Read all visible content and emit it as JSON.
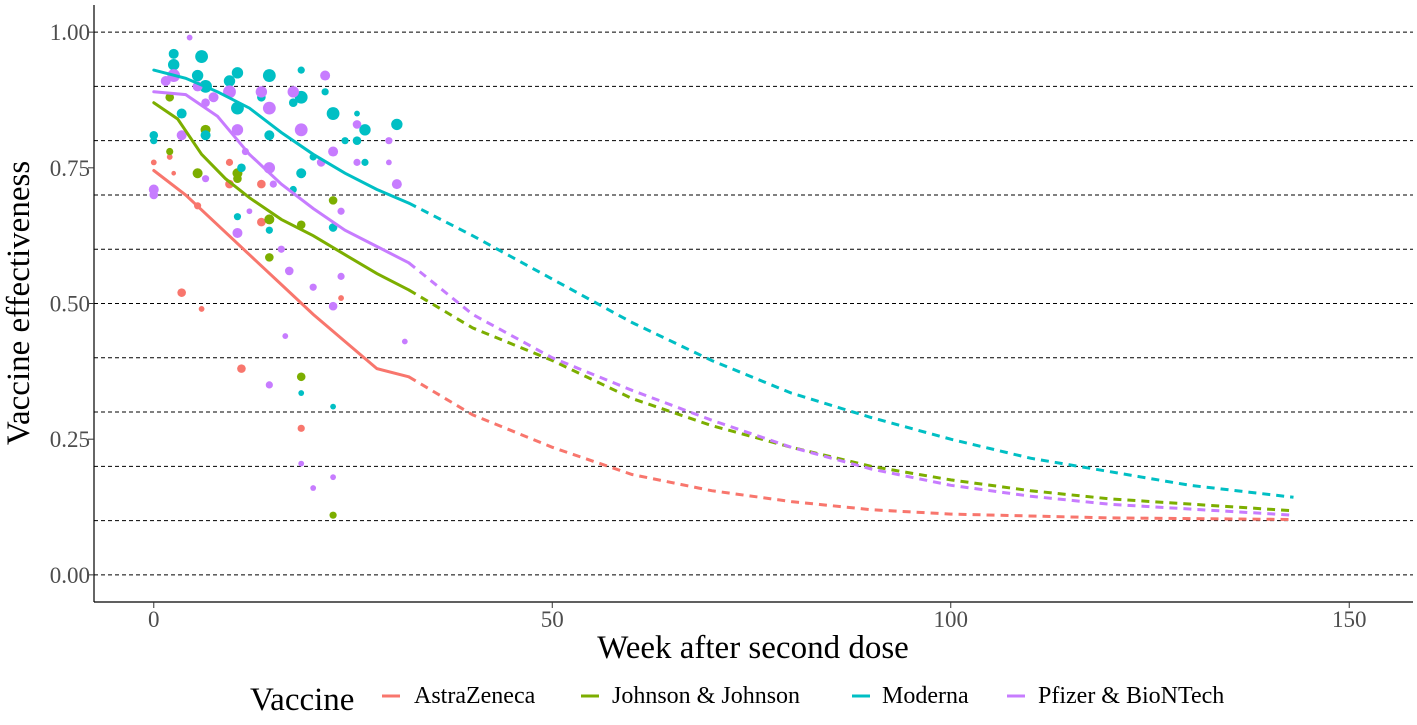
{
  "chart_data": {
    "type": "scatter",
    "xlabel": "Week after second dose",
    "ylabel": "Vaccine effectiveness",
    "xlim": [
      -7.5,
      158
    ],
    "ylim": [
      -0.05,
      1.05
    ],
    "x_ticks": [
      0,
      50,
      100,
      150
    ],
    "x_tick_labels": [
      "0",
      "50",
      "100",
      "150"
    ],
    "y_ticks": [
      0,
      0.25,
      0.5,
      0.75,
      1.0
    ],
    "y_tick_labels": [
      "0.00",
      "0.25",
      "0.50",
      "0.75",
      "1.00"
    ],
    "gridlines_y": [
      0,
      0.1,
      0.2,
      0.3,
      0.4,
      0.5,
      0.6,
      0.7,
      0.8,
      0.9,
      1.0
    ],
    "grid": "horizontal dashed",
    "legend": {
      "title": "Vaccine",
      "position": "bottom",
      "entries": [
        "AstraZeneca",
        "Johnson & Johnson",
        "Moderna",
        "Pfizer & BioNTech"
      ]
    },
    "colors": {
      "AstraZeneca": "#F8766D",
      "Johnson & Johnson": "#7CAE00",
      "Moderna": "#00BFC4",
      "Pfizer & BioNTech": "#C77CFF"
    },
    "series": [
      {
        "name": "AstraZeneca",
        "color": "#F8766D",
        "points": [
          [
            0,
            0.76,
            1
          ],
          [
            2,
            0.77,
            1
          ],
          [
            2.5,
            0.74,
            0.6
          ],
          [
            3.5,
            0.52,
            2
          ],
          [
            5.5,
            0.68,
            1.5
          ],
          [
            6,
            0.49,
            1
          ],
          [
            9.5,
            0.76,
            1.5
          ],
          [
            9.5,
            0.72,
            2
          ],
          [
            11,
            0.38,
            2
          ],
          [
            13.5,
            0.72,
            2
          ],
          [
            13.5,
            0.65,
            2
          ],
          [
            18.5,
            0.27,
            1.5
          ],
          [
            23.5,
            0.51,
            1
          ]
        ],
        "fit": [
          [
            0,
            0.745
          ],
          [
            4,
            0.7
          ],
          [
            8,
            0.645
          ],
          [
            12,
            0.59
          ],
          [
            16,
            0.535
          ],
          [
            20,
            0.48
          ],
          [
            24,
            0.43
          ],
          [
            28,
            0.38
          ],
          [
            32,
            0.365
          ]
        ],
        "projection": [
          [
            32,
            0.365
          ],
          [
            40,
            0.295
          ],
          [
            50,
            0.235
          ],
          [
            60,
            0.185
          ],
          [
            70,
            0.155
          ],
          [
            80,
            0.135
          ],
          [
            90,
            0.12
          ],
          [
            100,
            0.112
          ],
          [
            120,
            0.105
          ],
          [
            143,
            0.102
          ]
        ]
      },
      {
        "name": "Johnson & Johnson",
        "color": "#7CAE00",
        "points": [
          [
            2,
            0.88,
            2
          ],
          [
            2,
            0.78,
            1.5
          ],
          [
            5.5,
            0.74,
            2.5
          ],
          [
            6.5,
            0.82,
            2.5
          ],
          [
            10.5,
            0.74,
            2.5
          ],
          [
            10.5,
            0.73,
            2
          ],
          [
            14.5,
            0.655,
            2.5
          ],
          [
            14.5,
            0.585,
            2
          ],
          [
            18.5,
            0.645,
            2
          ],
          [
            18.5,
            0.365,
            2
          ],
          [
            22.5,
            0.69,
            2
          ],
          [
            22.5,
            0.11,
            1.5
          ]
        ],
        "fit": [
          [
            0,
            0.87
          ],
          [
            3,
            0.84
          ],
          [
            6,
            0.775
          ],
          [
            9,
            0.73
          ],
          [
            12,
            0.695
          ],
          [
            16,
            0.655
          ],
          [
            20,
            0.625
          ],
          [
            24,
            0.59
          ],
          [
            28,
            0.555
          ],
          [
            32,
            0.525
          ]
        ],
        "projection": [
          [
            32,
            0.525
          ],
          [
            40,
            0.455
          ],
          [
            50,
            0.395
          ],
          [
            60,
            0.325
          ],
          [
            70,
            0.275
          ],
          [
            80,
            0.235
          ],
          [
            90,
            0.2
          ],
          [
            100,
            0.175
          ],
          [
            110,
            0.155
          ],
          [
            120,
            0.14
          ],
          [
            143,
            0.118
          ]
        ]
      },
      {
        "name": "Moderna",
        "color": "#00BFC4",
        "points": [
          [
            0,
            0.81,
            2
          ],
          [
            0,
            0.8,
            1.5
          ],
          [
            2.5,
            0.96,
            2.5
          ],
          [
            2.5,
            0.94,
            3
          ],
          [
            3.5,
            0.85,
            2.5
          ],
          [
            5.5,
            0.92,
            3
          ],
          [
            6,
            0.955,
            3.5
          ],
          [
            6.5,
            0.9,
            3.5
          ],
          [
            6.5,
            0.81,
            2.5
          ],
          [
            9.5,
            0.91,
            3
          ],
          [
            10.5,
            0.925,
            3
          ],
          [
            10.5,
            0.86,
            3.5
          ],
          [
            10.5,
            0.66,
            1.5
          ],
          [
            11,
            0.75,
            2
          ],
          [
            13.5,
            0.88,
            2
          ],
          [
            14.5,
            0.92,
            3.5
          ],
          [
            14.5,
            0.81,
            2.5
          ],
          [
            14.5,
            0.635,
            1.5
          ],
          [
            17.5,
            0.87,
            2
          ],
          [
            18.5,
            0.93,
            1.5
          ],
          [
            18.5,
            0.88,
            3.5
          ],
          [
            18.5,
            0.74,
            2.5
          ],
          [
            18.5,
            0.335,
            1
          ],
          [
            20,
            0.77,
            1.5
          ],
          [
            21.5,
            0.89,
            1.5
          ],
          [
            22.5,
            0.85,
            3.5
          ],
          [
            22.5,
            0.64,
            2
          ],
          [
            22.5,
            0.31,
            1
          ],
          [
            24,
            0.8,
            1.5
          ],
          [
            25.5,
            0.8,
            2
          ],
          [
            25.5,
            0.85,
            1
          ],
          [
            26.5,
            0.82,
            3
          ],
          [
            26.5,
            0.76,
            1.5
          ],
          [
            30.5,
            0.83,
            3
          ],
          [
            17.5,
            0.71,
            1.5
          ]
        ],
        "fit": [
          [
            0,
            0.93
          ],
          [
            4,
            0.915
          ],
          [
            8,
            0.89
          ],
          [
            12,
            0.86
          ],
          [
            16,
            0.815
          ],
          [
            20,
            0.775
          ],
          [
            24,
            0.74
          ],
          [
            28,
            0.71
          ],
          [
            32,
            0.685
          ]
        ],
        "projection": [
          [
            32,
            0.685
          ],
          [
            40,
            0.625
          ],
          [
            50,
            0.545
          ],
          [
            60,
            0.465
          ],
          [
            70,
            0.395
          ],
          [
            80,
            0.335
          ],
          [
            90,
            0.29
          ],
          [
            100,
            0.25
          ],
          [
            110,
            0.215
          ],
          [
            120,
            0.19
          ],
          [
            130,
            0.165
          ],
          [
            143,
            0.143
          ]
        ]
      },
      {
        "name": "Pfizer & BioNTech",
        "color": "#C77CFF",
        "points": [
          [
            0,
            0.71,
            2.5
          ],
          [
            0,
            0.7,
            2
          ],
          [
            1.5,
            0.91,
            2.5
          ],
          [
            2.5,
            0.92,
            3.5
          ],
          [
            3.5,
            0.81,
            2.5
          ],
          [
            4.5,
            0.99,
            1
          ],
          [
            5.5,
            0.9,
            2.5
          ],
          [
            6.5,
            0.87,
            2
          ],
          [
            6.5,
            0.73,
            1.5
          ],
          [
            7.5,
            0.88,
            2.5
          ],
          [
            9.5,
            0.89,
            3.5
          ],
          [
            10.5,
            0.82,
            3
          ],
          [
            10.5,
            0.63,
            2.5
          ],
          [
            11.5,
            0.78,
            1.5
          ],
          [
            12,
            0.67,
            1
          ],
          [
            13.5,
            0.89,
            3
          ],
          [
            14.5,
            0.86,
            3.5
          ],
          [
            14.5,
            0.75,
            3
          ],
          [
            14.5,
            0.35,
            1.5
          ],
          [
            15,
            0.72,
            1.5
          ],
          [
            16,
            0.6,
            1.5
          ],
          [
            16.5,
            0.44,
            1
          ],
          [
            17,
            0.56,
            2
          ],
          [
            17.5,
            0.89,
            3
          ],
          [
            18.5,
            0.82,
            3.5
          ],
          [
            18.5,
            0.205,
            1
          ],
          [
            20,
            0.53,
            1.5
          ],
          [
            20,
            0.16,
            1
          ],
          [
            21,
            0.76,
            2
          ],
          [
            21.5,
            0.92,
            2.5
          ],
          [
            22.5,
            0.78,
            2.5
          ],
          [
            22.5,
            0.495,
            2
          ],
          [
            22.5,
            0.18,
            1
          ],
          [
            23.5,
            0.67,
            1.5
          ],
          [
            23.5,
            0.55,
            1.5
          ],
          [
            25.5,
            0.83,
            2
          ],
          [
            25.5,
            0.76,
            1.5
          ],
          [
            29.5,
            0.8,
            1.5
          ],
          [
            29.5,
            0.76,
            1
          ],
          [
            30.5,
            0.72,
            2.5
          ],
          [
            31.5,
            0.43,
            1
          ]
        ],
        "fit": [
          [
            0,
            0.89
          ],
          [
            4,
            0.885
          ],
          [
            8,
            0.845
          ],
          [
            12,
            0.775
          ],
          [
            16,
            0.72
          ],
          [
            20,
            0.675
          ],
          [
            24,
            0.635
          ],
          [
            28,
            0.605
          ],
          [
            32,
            0.575
          ]
        ],
        "projection": [
          [
            32,
            0.575
          ],
          [
            40,
            0.48
          ],
          [
            50,
            0.4
          ],
          [
            60,
            0.34
          ],
          [
            70,
            0.285
          ],
          [
            80,
            0.235
          ],
          [
            90,
            0.195
          ],
          [
            100,
            0.165
          ],
          [
            110,
            0.145
          ],
          [
            120,
            0.13
          ],
          [
            143,
            0.11
          ]
        ]
      }
    ]
  }
}
